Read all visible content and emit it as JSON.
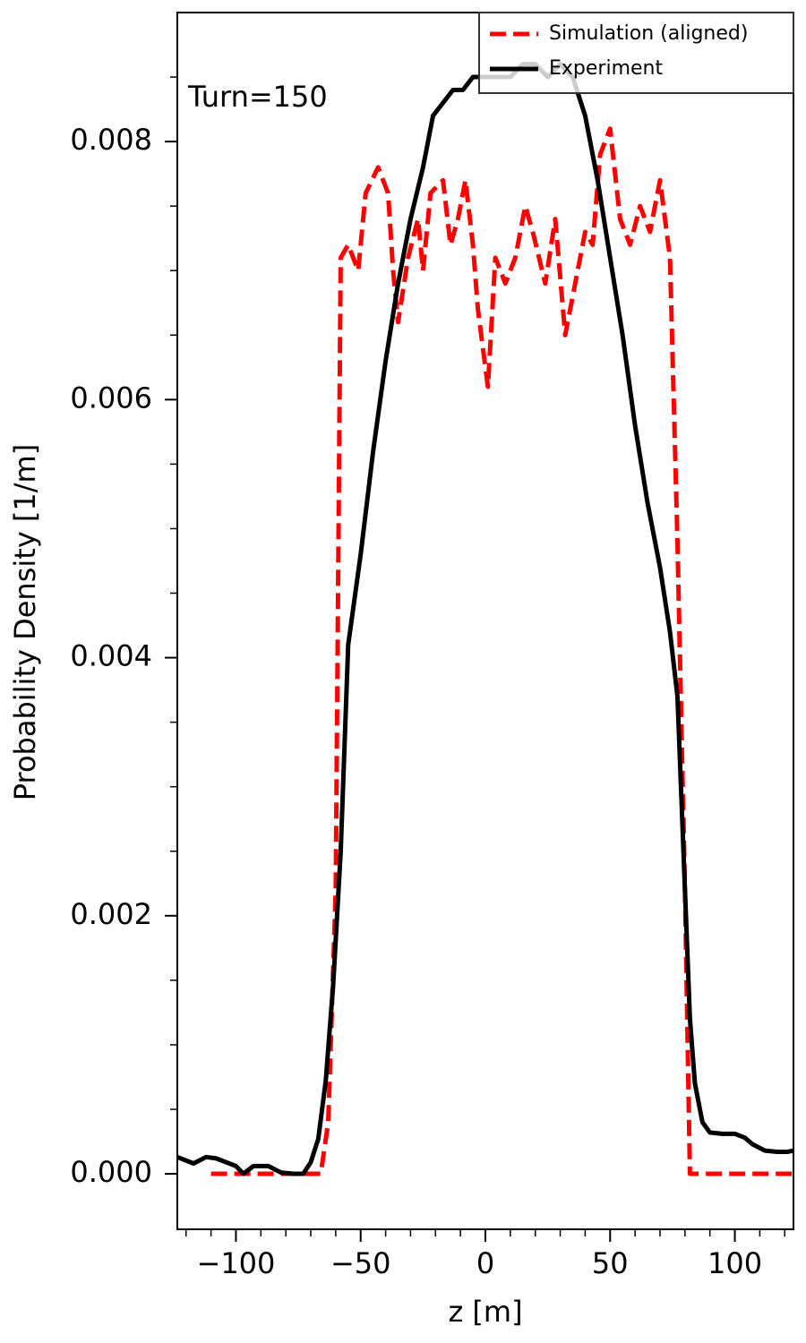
{
  "chart_data": {
    "type": "line",
    "xlabel": "z [m]",
    "ylabel": "Probability Density [1/m]",
    "annotation": "Turn=150",
    "xlim": [
      -123.5,
      123.5
    ],
    "ylim": [
      -0.00043,
      0.009
    ],
    "xticks": [
      {
        "value": -100,
        "label": "−100"
      },
      {
        "value": -50,
        "label": "−50"
      },
      0,
      50,
      100
    ],
    "yticks": [
      {
        "value": 0,
        "label": "0.000"
      },
      0.002,
      0.004,
      0.006,
      0.008
    ],
    "xminorticks": [
      -120,
      -110,
      -90,
      -80,
      -70,
      -60,
      -40,
      -30,
      -20,
      -10,
      10,
      20,
      30,
      40,
      60,
      70,
      80,
      90,
      110,
      120
    ],
    "yminorticks": [
      0.0005,
      0.001,
      0.0015,
      0.0025,
      0.003,
      0.0035,
      0.0045,
      0.005,
      0.0055,
      0.0065,
      0.007,
      0.0075,
      0.0085
    ],
    "legend": "upper right",
    "series": [
      {
        "name": "Simulation (aligned)",
        "color": "#ff0000",
        "dash": true,
        "x": [
          -110,
          -66,
          -63,
          -60,
          -58,
          -55,
          -51,
          -48,
          -43,
          -39,
          -37,
          -35,
          -31,
          -27,
          -25,
          -22,
          -17,
          -14,
          -11,
          -8,
          -5,
          -3,
          1,
          4,
          8,
          12,
          16,
          19,
          24,
          28,
          32,
          36,
          40,
          43,
          46,
          50,
          54,
          58,
          62,
          66,
          70,
          74,
          77,
          80,
          82,
          123.5
        ],
        "values": [
          0,
          0,
          0.0004,
          0.0022,
          0.0071,
          0.0072,
          0.007,
          0.0076,
          0.0078,
          0.0076,
          0.007,
          0.0066,
          0.0071,
          0.0074,
          0.007,
          0.0076,
          0.0077,
          0.0072,
          0.0074,
          0.0077,
          0.0072,
          0.0067,
          0.0061,
          0.0071,
          0.0069,
          0.0071,
          0.0075,
          0.0073,
          0.0069,
          0.0074,
          0.0065,
          0.0069,
          0.0073,
          0.0072,
          0.0079,
          0.0081,
          0.0074,
          0.0072,
          0.0075,
          0.0073,
          0.0077,
          0.0071,
          0.0049,
          0.0022,
          0,
          0
        ]
      },
      {
        "name": "Experiment",
        "color": "#000000",
        "dash": false,
        "x": [
          -123.5,
          -117,
          -112,
          -108,
          -100,
          -97,
          -93,
          -87,
          -82,
          -77,
          -73,
          -70,
          -67,
          -64,
          -61,
          -58,
          -55,
          -50,
          -45,
          -40,
          -35,
          -30,
          -25,
          -21,
          -17,
          -13,
          -9,
          -5,
          0,
          5,
          10,
          15,
          20,
          25,
          30,
          35,
          40,
          45,
          50,
          55,
          60,
          65,
          70,
          74,
          77,
          80,
          82,
          84,
          87,
          90,
          95,
          100,
          104,
          107,
          112,
          117,
          121,
          123.5
        ],
        "values": [
          0.00013,
          8e-05,
          0.00013,
          0.00012,
          6e-05,
          0,
          6e-05,
          6e-05,
          1e-05,
          0,
          0,
          9e-05,
          0.00027,
          0.00072,
          0.00147,
          0.0025,
          0.0041,
          0.0048,
          0.0056,
          0.0063,
          0.0069,
          0.0074,
          0.0078,
          0.0082,
          0.0083,
          0.0084,
          0.0084,
          0.0085,
          0.0085,
          0.0085,
          0.0085,
          0.0086,
          0.0086,
          0.0085,
          0.0086,
          0.0085,
          0.0082,
          0.0077,
          0.0071,
          0.0065,
          0.0058,
          0.0052,
          0.0047,
          0.0042,
          0.0037,
          0.0022,
          0.0012,
          0.0007,
          0.0004,
          0.00032,
          0.00031,
          0.00031,
          0.00028,
          0.00023,
          0.00018,
          0.00017,
          0.00017,
          0.00018
        ]
      }
    ]
  }
}
